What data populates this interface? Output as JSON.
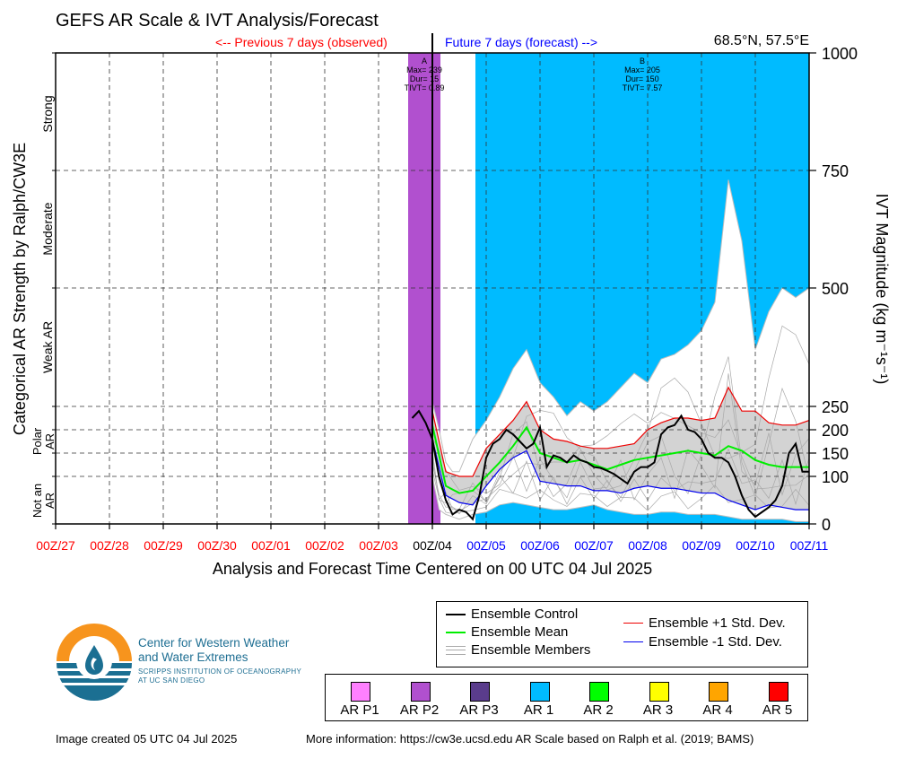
{
  "header": {
    "title": "GEFS AR Scale & IVT Analysis/Forecast",
    "previous_label": "<-- Previous 7 days (observed)",
    "future_label": "Future 7 days (forecast) -->",
    "coords": "68.5°N, 57.5°E"
  },
  "chart_data": {
    "type": "line",
    "xlabel": "Analysis and Forecast Time Centered on 00 UTC 04 Jul 2025",
    "ylabel_left": "Categorical AR Strength by Ralph/CW3E",
    "ylabel_right": "IVT Magnitude (kg m⁻¹s⁻¹)",
    "x_ticks": [
      "00Z/27",
      "00Z/28",
      "00Z/29",
      "00Z/30",
      "00Z/01",
      "00Z/02",
      "00Z/03",
      "00Z/04",
      "00Z/05",
      "00Z/06",
      "00Z/07",
      "00Z/08",
      "00Z/09",
      "00Z/10",
      "00Z/11"
    ],
    "x_tick_colors": [
      "#ff0000",
      "#ff0000",
      "#ff0000",
      "#ff0000",
      "#ff0000",
      "#ff0000",
      "#ff0000",
      "#000000",
      "#0000ff",
      "#0000ff",
      "#0000ff",
      "#0000ff",
      "#0000ff",
      "#0000ff",
      "#0000ff"
    ],
    "x_range_days": [
      -7,
      7
    ],
    "y_ticks": [
      0,
      100,
      150,
      200,
      250,
      500,
      750,
      1000
    ],
    "y_range": [
      0,
      1000
    ],
    "category_labels": [
      "Strong",
      "Moderate",
      "Weak AR",
      "Polar AR",
      "Not an AR"
    ],
    "shading": [
      {
        "start": -0.45,
        "end": 0.15,
        "color": "#b150cf"
      },
      {
        "start": 0.8,
        "end": 7.0,
        "color": "#00bbff"
      }
    ],
    "annotations": [
      {
        "at": -0.15,
        "lines": [
          "A",
          "Max= 239",
          "Dur= 15",
          "TIVT= 0.89"
        ]
      },
      {
        "at": 3.9,
        "lines": [
          "B",
          "Max= 205",
          "Dur= 150",
          "TIVT= 7.57"
        ]
      }
    ],
    "envelope": {
      "x": [
        0,
        0.125,
        0.25,
        0.375,
        0.5,
        0.75,
        1,
        1.25,
        1.5,
        1.75,
        2,
        2.25,
        2.5,
        2.75,
        3,
        3.25,
        3.5,
        3.75,
        4,
        4.25,
        4.5,
        4.75,
        5,
        5.25,
        5.5,
        5.75,
        6,
        6.25,
        6.5,
        6.75,
        7
      ],
      "min": [
        100,
        30,
        20,
        15,
        10,
        20,
        25,
        40,
        45,
        40,
        35,
        30,
        30,
        35,
        40,
        30,
        25,
        20,
        20,
        25,
        25,
        20,
        20,
        20,
        15,
        10,
        10,
        10,
        10,
        5,
        5
      ],
      "max": [
        260,
        200,
        130,
        110,
        110,
        180,
        220,
        270,
        330,
        370,
        300,
        270,
        230,
        260,
        240,
        260,
        290,
        320,
        300,
        350,
        360,
        380,
        410,
        470,
        730,
        600,
        370,
        450,
        500,
        480,
        500
      ]
    },
    "control": {
      "x": [
        -0.375,
        -0.25,
        -0.125,
        0,
        0.125,
        0.25,
        0.375,
        0.5,
        0.625,
        0.75,
        0.875,
        1,
        1.125,
        1.25,
        1.375,
        1.5,
        1.625,
        1.75,
        1.875,
        2,
        2.125,
        2.25,
        2.375,
        2.5,
        2.625,
        2.75,
        2.875,
        3,
        3.125,
        3.25,
        3.375,
        3.5,
        3.625,
        3.75,
        3.875,
        4,
        4.125,
        4.25,
        4.375,
        4.5,
        4.625,
        4.75,
        4.875,
        5,
        5.125,
        5.25,
        5.375,
        5.5,
        5.625,
        5.75,
        5.875,
        6,
        6.125,
        6.25,
        6.375,
        6.5,
        6.625,
        6.75,
        6.875,
        7
      ],
      "values": [
        225,
        240,
        215,
        180,
        100,
        50,
        20,
        30,
        25,
        10,
        60,
        140,
        170,
        180,
        200,
        190,
        175,
        160,
        170,
        205,
        120,
        145,
        140,
        130,
        145,
        135,
        130,
        120,
        118,
        112,
        105,
        95,
        85,
        110,
        120,
        120,
        130,
        190,
        205,
        210,
        230,
        200,
        195,
        180,
        150,
        140,
        140,
        130,
        100,
        60,
        30,
        15,
        25,
        35,
        50,
        80,
        150,
        170,
        110,
        110
      ]
    },
    "series": [
      {
        "name": "Ensemble Mean",
        "x": [
          0,
          0.25,
          0.5,
          0.75,
          1,
          1.25,
          1.5,
          1.75,
          2,
          2.25,
          2.5,
          2.75,
          3,
          3.25,
          3.5,
          3.75,
          4,
          4.25,
          4.5,
          4.75,
          5,
          5.25,
          5.5,
          5.75,
          6,
          6.25,
          6.5,
          6.75,
          7
        ],
        "values": [
          210,
          80,
          65,
          70,
          100,
          130,
          165,
          205,
          150,
          140,
          130,
          135,
          125,
          115,
          125,
          135,
          140,
          145,
          150,
          155,
          150,
          145,
          165,
          155,
          135,
          125,
          120,
          120,
          120
        ],
        "color": "#00ee00"
      },
      {
        "name": "Ensemble +1 Std. Dev.",
        "x": [
          0,
          0.25,
          0.5,
          0.75,
          1,
          1.25,
          1.5,
          1.75,
          2,
          2.25,
          2.5,
          2.75,
          3,
          3.25,
          3.5,
          3.75,
          4,
          4.25,
          4.5,
          4.75,
          5,
          5.25,
          5.5,
          5.75,
          6,
          6.25,
          6.5,
          6.75,
          7
        ],
        "values": [
          240,
          110,
          100,
          100,
          160,
          190,
          220,
          260,
          200,
          180,
          175,
          165,
          160,
          160,
          165,
          170,
          200,
          215,
          225,
          225,
          220,
          225,
          290,
          240,
          240,
          215,
          210,
          210,
          220
        ],
        "color": "#ee0000"
      },
      {
        "name": "Ensemble -1 Std. Dev.",
        "x": [
          0,
          0.25,
          0.5,
          0.75,
          1,
          1.25,
          1.5,
          1.75,
          2,
          2.25,
          2.5,
          2.75,
          3,
          3.25,
          3.5,
          3.75,
          4,
          4.25,
          4.5,
          4.75,
          5,
          5.25,
          5.5,
          5.75,
          6,
          6.25,
          6.5,
          6.75,
          7
        ],
        "values": [
          180,
          60,
          45,
          40,
          80,
          115,
          140,
          155,
          90,
          85,
          80,
          80,
          70,
          70,
          65,
          75,
          80,
          75,
          75,
          70,
          65,
          65,
          50,
          40,
          30,
          40,
          35,
          30,
          30
        ],
        "color": "#0000ee"
      }
    ]
  },
  "legend": {
    "control": "Ensemble Control",
    "mean": "Ensemble Mean",
    "members": "Ensemble Members",
    "plus_std": "Ensemble +1 Std. Dev.",
    "minus_std": "Ensemble -1 Std. Dev."
  },
  "ar_scale": [
    {
      "label": "AR P1",
      "color": "#ff80ff"
    },
    {
      "label": "AR P2",
      "color": "#b150cf"
    },
    {
      "label": "AR P3",
      "color": "#5a3c8c"
    },
    {
      "label": "AR 1",
      "color": "#00bbff"
    },
    {
      "label": "AR 2",
      "color": "#00ff00"
    },
    {
      "label": "AR 3",
      "color": "#ffff00"
    },
    {
      "label": "AR 4",
      "color": "#ffa500"
    },
    {
      "label": "AR 5",
      "color": "#ff0000"
    }
  ],
  "logo": {
    "line1": "Center for Western Weather",
    "line2": "and Water Extremes",
    "line3": "SCRIPPS INSTITUTION OF OCEANOGRAPHY",
    "line4": "AT UC SAN DIEGO"
  },
  "footer": {
    "created": "Image created 05 UTC 04 Jul 2025",
    "more_info": "More information: https://cw3e.ucsd.edu AR Scale based on Ralph et al. (2019; BAMS)"
  }
}
